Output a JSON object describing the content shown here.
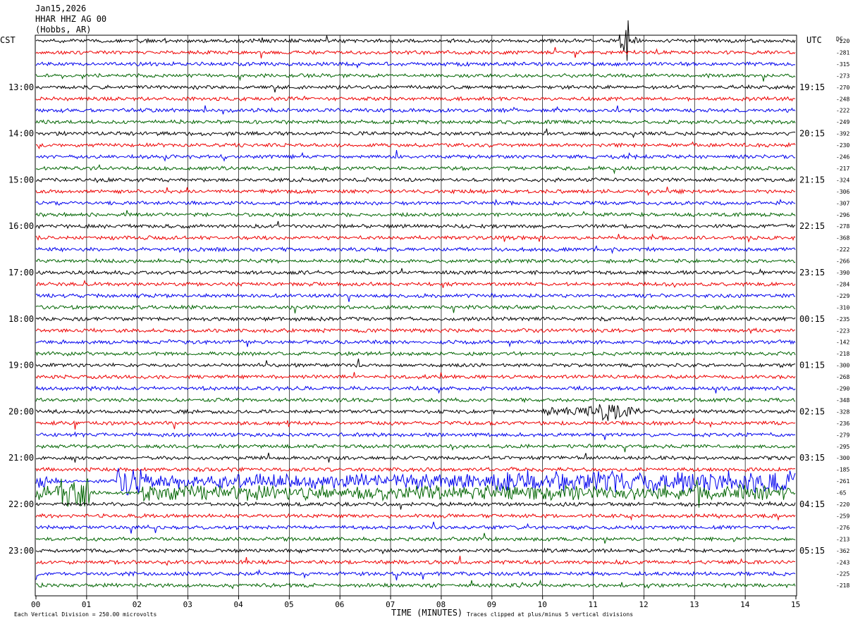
{
  "header": {
    "date": "Jan15,2026",
    "station": "HHAR HHZ AG 00",
    "location": "(Hobbs, AR)"
  },
  "left_tz": "CST",
  "right_tz": "UTC",
  "dc_label": "DC",
  "colors": {
    "trace_cycle": [
      "#000000",
      "#ee0000",
      "#0000ee",
      "#006400"
    ],
    "grid": "#000000",
    "background": "#ffffff"
  },
  "chart_data": {
    "type": "line",
    "xlabel": "TIME (MINUTES)",
    "x_ticks": [
      "00",
      "01",
      "02",
      "03",
      "04",
      "05",
      "06",
      "07",
      "08",
      "09",
      "10",
      "11",
      "12",
      "13",
      "14",
      "15"
    ],
    "xlim": [
      0,
      15
    ],
    "hour_labels_left": [
      "13:00",
      "14:00",
      "15:00",
      "16:00",
      "17:00",
      "18:00",
      "19:00",
      "20:00",
      "21:00",
      "22:00",
      "23:00"
    ],
    "hour_labels_right": [
      "19:15",
      "20:15",
      "21:15",
      "22:15",
      "23:15",
      "00:15",
      "01:15",
      "02:15",
      "03:15",
      "04:15",
      "05:15"
    ],
    "trace_count": 48,
    "dc_offsets": [
      -220,
      -281,
      -315,
      -273,
      -270,
      -248,
      -222,
      -249,
      -392,
      -230,
      -246,
      -217,
      -324,
      -306,
      -307,
      -296,
      -278,
      -368,
      -222,
      -266,
      -390,
      -284,
      -229,
      -310,
      -235,
      -223,
      -142,
      -218,
      -300,
      -268,
      -290,
      -348,
      -328,
      -236,
      -279,
      -295,
      -300,
      -185,
      -261,
      -65,
      -220,
      -259,
      -276,
      -213,
      -362,
      -243,
      -225,
      -218
    ],
    "events": [
      {
        "trace": 0,
        "minute": 11.6,
        "description": "large clipped arrival"
      },
      {
        "trace": 32,
        "minute": 11.3,
        "description": "local event burst"
      },
      {
        "trace": 38,
        "minute": 1.8,
        "description": "high amplitude wind/noise"
      },
      {
        "trace": 39,
        "minute": 0.8,
        "description": "high amplitude noise"
      }
    ]
  },
  "footer": {
    "scale_note": "Each Vertical Division =  250.00 microvolts",
    "clip_note": "Traces clipped at plus/minus 5 vertical divisions"
  }
}
